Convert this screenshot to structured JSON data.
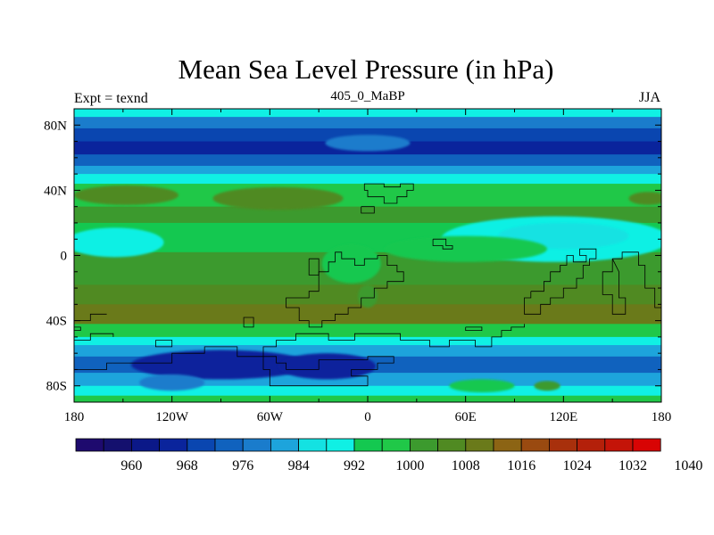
{
  "chart_data": {
    "type": "heatmap",
    "title": "Mean Sea Level Pressure (in hPa)",
    "left_label": "Expt = texnd",
    "center_label": "405_0_MaBP",
    "right_label": "JJA",
    "x_range": [
      -180,
      180
    ],
    "y_range": [
      -90,
      90
    ],
    "x_ticks": [
      {
        "value": -180,
        "label": "180"
      },
      {
        "value": -120,
        "label": "120W"
      },
      {
        "value": -60,
        "label": "60W"
      },
      {
        "value": 0,
        "label": "0"
      },
      {
        "value": 60,
        "label": "60E"
      },
      {
        "value": 120,
        "label": "120E"
      },
      {
        "value": 180,
        "label": "180"
      }
    ],
    "y_ticks": [
      {
        "value": 80,
        "label": "80N"
      },
      {
        "value": 40,
        "label": "40N"
      },
      {
        "value": 0,
        "label": "0"
      },
      {
        "value": -40,
        "label": "40S"
      },
      {
        "value": -80,
        "label": "80S"
      }
    ],
    "colorbar": {
      "colors": [
        "#1e0a6e",
        "#14106e",
        "#0b1888",
        "#0a249c",
        "#0a46b0",
        "#1062be",
        "#1a7ccc",
        "#1da4dc",
        "#14e2e2",
        "#10f0e4",
        "#14c850",
        "#20c848",
        "#3c9a2e",
        "#508a22",
        "#6a7a1a",
        "#8c6414",
        "#9a4a10",
        "#a8300c",
        "#b4200a",
        "#c41408",
        "#d80404"
      ],
      "labels": [
        {
          "after": 2,
          "text": "960"
        },
        {
          "after": 4,
          "text": "968"
        },
        {
          "after": 6,
          "text": "976"
        },
        {
          "after": 8,
          "text": "984"
        },
        {
          "after": 10,
          "text": "992"
        },
        {
          "after": 12,
          "text": "1000"
        },
        {
          "after": 14,
          "text": "1008"
        },
        {
          "after": 16,
          "text": "1016"
        },
        {
          "after": 18,
          "text": "1024"
        },
        {
          "after": 20,
          "text": "1032"
        },
        {
          "after": 22,
          "text": "1040"
        }
      ]
    },
    "zonal_bands": [
      {
        "lat_top": 90,
        "lat_bottom": 85,
        "value": 988
      },
      {
        "lat_top": 85,
        "lat_bottom": 78,
        "value": 978
      },
      {
        "lat_top": 78,
        "lat_bottom": 70,
        "value": 970
      },
      {
        "lat_top": 70,
        "lat_bottom": 62,
        "value": 966
      },
      {
        "lat_top": 62,
        "lat_bottom": 55,
        "value": 974
      },
      {
        "lat_top": 55,
        "lat_bottom": 50,
        "value": 982
      },
      {
        "lat_top": 50,
        "lat_bottom": 44,
        "value": 990
      },
      {
        "lat_top": 44,
        "lat_bottom": 30,
        "value": 998
      },
      {
        "lat_top": 30,
        "lat_bottom": 20,
        "value": 1000
      },
      {
        "lat_top": 20,
        "lat_bottom": 2,
        "value": 994
      },
      {
        "lat_top": 2,
        "lat_bottom": -18,
        "value": 1000
      },
      {
        "lat_top": -18,
        "lat_bottom": -30,
        "value": 1004
      },
      {
        "lat_top": -30,
        "lat_bottom": -42,
        "value": 1008
      },
      {
        "lat_top": -42,
        "lat_bottom": -50,
        "value": 998
      },
      {
        "lat_top": -50,
        "lat_bottom": -55,
        "value": 990
      },
      {
        "lat_top": -55,
        "lat_bottom": -62,
        "value": 982
      },
      {
        "lat_top": -62,
        "lat_bottom": -72,
        "value": 974
      },
      {
        "lat_top": -72,
        "lat_bottom": -80,
        "value": 982
      },
      {
        "lat_top": -80,
        "lat_bottom": -86,
        "value": 990
      },
      {
        "lat_top": -86,
        "lat_bottom": -90,
        "value": 998
      }
    ],
    "features": [
      {
        "lon": 0,
        "lat": 69,
        "lon_r": 26,
        "lat_r": 5,
        "value": 978
      },
      {
        "lon": -148,
        "lat": 37,
        "lon_r": 32,
        "lat_r": 6,
        "value": 1006
      },
      {
        "lon": -55,
        "lat": 35,
        "lon_r": 40,
        "lat_r": 7,
        "value": 1006
      },
      {
        "lon": 172,
        "lat": 35,
        "lon_r": 12,
        "lat_r": 4,
        "value": 1006
      },
      {
        "lon": -155,
        "lat": 8,
        "lon_r": 30,
        "lat_r": 9,
        "value": 990
      },
      {
        "lon": 115,
        "lat": 10,
        "lon_r": 70,
        "lat_r": 14,
        "value": 990
      },
      {
        "lon": 120,
        "lat": 12,
        "lon_r": 40,
        "lat_r": 8,
        "value": 986
      },
      {
        "lon": 60,
        "lat": 4,
        "lon_r": 50,
        "lat_r": 8,
        "value": 992
      },
      {
        "lon": -10,
        "lat": -5,
        "lon_r": 18,
        "lat_r": 12,
        "value": 992
      },
      {
        "lon": -90,
        "lat": -67,
        "lon_r": 55,
        "lat_r": 9,
        "value": 966
      },
      {
        "lon": -25,
        "lat": -68,
        "lon_r": 30,
        "lat_r": 8,
        "value": 964
      },
      {
        "lon": -120,
        "lat": -78,
        "lon_r": 20,
        "lat_r": 5,
        "value": 976
      },
      {
        "lon": 70,
        "lat": -80,
        "lon_r": 20,
        "lat_r": 4,
        "value": 994
      },
      {
        "lon": 110,
        "lat": -80,
        "lon_r": 8,
        "lat_r": 3,
        "value": 1000
      },
      {
        "lon": 0,
        "lat": -25,
        "lon_r": 6,
        "lat_r": 7,
        "value": 1000
      }
    ],
    "coastlines": [
      [
        [
          -2,
          40
        ],
        [
          -2,
          44
        ],
        [
          10,
          44
        ],
        [
          10,
          42
        ],
        [
          20,
          42
        ],
        [
          20,
          44
        ],
        [
          28,
          44
        ],
        [
          28,
          40
        ],
        [
          24,
          40
        ],
        [
          24,
          36
        ],
        [
          18,
          36
        ],
        [
          18,
          32
        ],
        [
          10,
          32
        ],
        [
          10,
          36
        ],
        [
          0,
          36
        ],
        [
          0,
          40
        ],
        [
          -2,
          40
        ]
      ],
      [
        [
          -4,
          30
        ],
        [
          -4,
          26
        ],
        [
          4,
          26
        ],
        [
          4,
          30
        ],
        [
          -4,
          30
        ]
      ],
      [
        [
          40,
          10
        ],
        [
          48,
          10
        ],
        [
          48,
          6
        ],
        [
          52,
          6
        ],
        [
          52,
          4
        ],
        [
          46,
          4
        ],
        [
          46,
          6
        ],
        [
          40,
          6
        ],
        [
          40,
          10
        ]
      ],
      [
        [
          -20,
          2
        ],
        [
          -16,
          2
        ],
        [
          -16,
          -2
        ],
        [
          -8,
          -2
        ],
        [
          -8,
          -6
        ],
        [
          -2,
          -6
        ],
        [
          -2,
          -2
        ],
        [
          6,
          -2
        ],
        [
          6,
          0
        ],
        [
          12,
          0
        ],
        [
          12,
          -6
        ],
        [
          18,
          -6
        ],
        [
          18,
          -10
        ],
        [
          22,
          -10
        ],
        [
          22,
          -16
        ],
        [
          12,
          -16
        ],
        [
          12,
          -20
        ],
        [
          4,
          -20
        ],
        [
          4,
          -26
        ],
        [
          -4,
          -26
        ],
        [
          -4,
          -32
        ],
        [
          -12,
          -32
        ],
        [
          -12,
          -36
        ],
        [
          -20,
          -36
        ],
        [
          -20,
          -40
        ],
        [
          -28,
          -40
        ],
        [
          -28,
          -44
        ],
        [
          -36,
          -44
        ],
        [
          -36,
          -40
        ],
        [
          -42,
          -40
        ],
        [
          -42,
          -32
        ],
        [
          -50,
          -32
        ],
        [
          -50,
          -26
        ],
        [
          -36,
          -26
        ],
        [
          -36,
          -22
        ],
        [
          -30,
          -22
        ],
        [
          -30,
          -10
        ],
        [
          -24,
          -10
        ],
        [
          -24,
          -4
        ],
        [
          -20,
          -4
        ],
        [
          -20,
          2
        ]
      ],
      [
        [
          -36,
          -2
        ],
        [
          -30,
          -2
        ],
        [
          -30,
          -12
        ],
        [
          -36,
          -12
        ],
        [
          -36,
          -2
        ]
      ],
      [
        [
          100,
          -22
        ],
        [
          108,
          -22
        ],
        [
          108,
          -16
        ],
        [
          112,
          -16
        ],
        [
          112,
          -10
        ],
        [
          118,
          -10
        ],
        [
          118,
          -6
        ],
        [
          122,
          -6
        ],
        [
          122,
          0
        ],
        [
          126,
          0
        ],
        [
          126,
          -4
        ],
        [
          134,
          -4
        ],
        [
          134,
          0
        ],
        [
          130,
          0
        ],
        [
          130,
          4
        ],
        [
          140,
          4
        ],
        [
          140,
          -2
        ],
        [
          136,
          -2
        ],
        [
          136,
          -6
        ],
        [
          132,
          -6
        ],
        [
          132,
          -14
        ],
        [
          128,
          -14
        ],
        [
          128,
          -20
        ],
        [
          120,
          -20
        ],
        [
          120,
          -26
        ],
        [
          112,
          -26
        ],
        [
          112,
          -30
        ],
        [
          106,
          -30
        ],
        [
          106,
          -36
        ],
        [
          96,
          -36
        ],
        [
          96,
          -26
        ],
        [
          100,
          -26
        ],
        [
          100,
          -22
        ]
      ],
      [
        [
          150,
          -2
        ],
        [
          156,
          -2
        ],
        [
          156,
          2
        ],
        [
          166,
          2
        ],
        [
          166,
          -6
        ],
        [
          170,
          -6
        ],
        [
          170,
          -20
        ],
        [
          176,
          -20
        ],
        [
          176,
          -32
        ],
        [
          180,
          -32
        ]
      ],
      [
        [
          150,
          -2
        ],
        [
          150,
          -10
        ],
        [
          144,
          -10
        ],
        [
          144,
          -24
        ],
        [
          150,
          -24
        ],
        [
          150,
          -36
        ],
        [
          158,
          -36
        ],
        [
          158,
          -26
        ],
        [
          154,
          -26
        ],
        [
          154,
          -10
        ],
        [
          150,
          -2
        ]
      ],
      [
        [
          -180,
          -40
        ],
        [
          -170,
          -40
        ],
        [
          -170,
          -36
        ],
        [
          -160,
          -36
        ]
      ],
      [
        [
          60,
          -44
        ],
        [
          70,
          -44
        ],
        [
          70,
          -46
        ],
        [
          60,
          -46
        ],
        [
          60,
          -44
        ]
      ],
      [
        [
          -130,
          -52
        ],
        [
          -120,
          -52
        ],
        [
          -120,
          -56
        ],
        [
          -130,
          -56
        ],
        [
          -130,
          -52
        ]
      ],
      [
        [
          -180,
          -52
        ],
        [
          -170,
          -52
        ],
        [
          -170,
          -48
        ],
        [
          -156,
          -48
        ],
        [
          -156,
          -50
        ]
      ],
      [
        [
          -180,
          -44
        ],
        [
          -176,
          -44
        ],
        [
          -176,
          -46
        ],
        [
          -180,
          -46
        ]
      ],
      [
        [
          -156,
          -66
        ],
        [
          -120,
          -66
        ],
        [
          -120,
          -60
        ],
        [
          -100,
          -60
        ],
        [
          -100,
          -56
        ],
        [
          -80,
          -56
        ],
        [
          -80,
          -62
        ],
        [
          -64,
          -62
        ],
        [
          -64,
          -56
        ],
        [
          -56,
          -56
        ],
        [
          -56,
          -52
        ],
        [
          -44,
          -52
        ],
        [
          -44,
          -48
        ],
        [
          -24,
          -48
        ],
        [
          -24,
          -52
        ],
        [
          -8,
          -52
        ],
        [
          -8,
          -48
        ],
        [
          20,
          -48
        ],
        [
          20,
          -52
        ],
        [
          38,
          -52
        ],
        [
          38,
          -56
        ],
        [
          50,
          -56
        ],
        [
          50,
          -52
        ],
        [
          66,
          -52
        ],
        [
          66,
          -56
        ],
        [
          76,
          -56
        ],
        [
          76,
          -50
        ],
        [
          82,
          -50
        ],
        [
          82,
          -46
        ],
        [
          88,
          -46
        ],
        [
          88,
          -44
        ],
        [
          96,
          -44
        ],
        [
          96,
          -42
        ]
      ],
      [
        [
          -156,
          -66
        ],
        [
          -160,
          -66
        ],
        [
          -160,
          -70
        ],
        [
          -180,
          -70
        ]
      ],
      [
        [
          -64,
          -62
        ],
        [
          -64,
          -70
        ],
        [
          -60,
          -70
        ],
        [
          -60,
          -80
        ],
        [
          0,
          -80
        ],
        [
          0,
          -74
        ],
        [
          -10,
          -74
        ],
        [
          -10,
          -70
        ],
        [
          6,
          -70
        ],
        [
          6,
          -66
        ],
        [
          16,
          -66
        ],
        [
          16,
          -62
        ],
        [
          0,
          -62
        ],
        [
          0,
          -64
        ],
        [
          -30,
          -64
        ],
        [
          -30,
          -70
        ],
        [
          -50,
          -70
        ],
        [
          -50,
          -66
        ],
        [
          -56,
          -66
        ],
        [
          -56,
          -62
        ],
        [
          -64,
          -62
        ]
      ],
      [
        [
          -76,
          -44
        ],
        [
          -70,
          -44
        ],
        [
          -70,
          -38
        ],
        [
          -76,
          -38
        ],
        [
          -76,
          -44
        ]
      ]
    ]
  }
}
